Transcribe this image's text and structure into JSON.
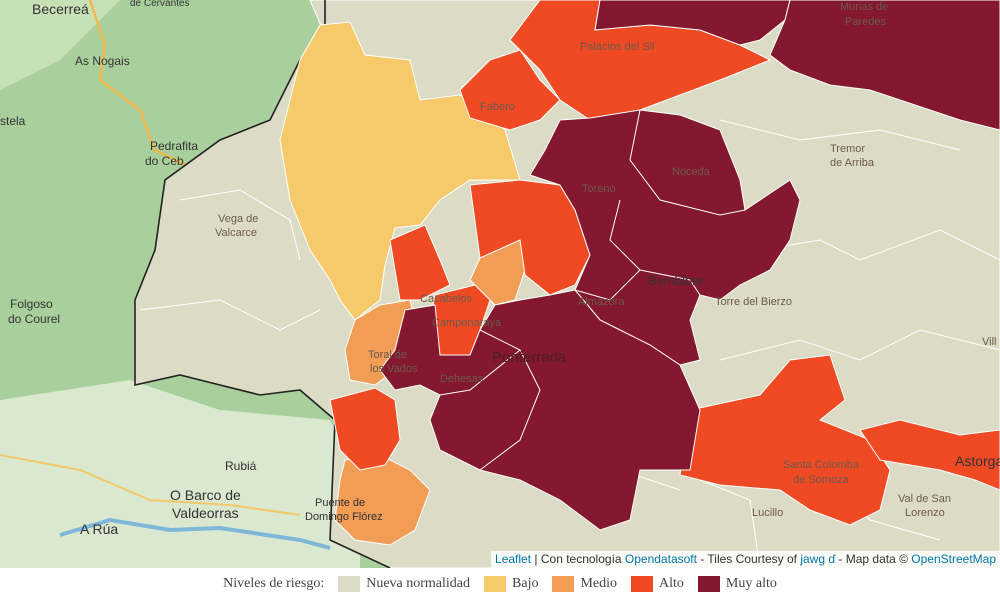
{
  "map": {
    "places": {
      "becerrea": "Becerreá",
      "cervantes": "de Cervantes",
      "as_nogais": "As Nogais",
      "stela": "stela",
      "pedrafita": "Pedrafita",
      "do_cebreiro": "do Ceb",
      "vega": "Vega de",
      "valcarce": "Valcarce",
      "folgoso": "Folgoso",
      "do_courel": "do Courel",
      "rubia": "Rubiá",
      "o_barco": "O Barco de",
      "valdeorras": "Valdeorras",
      "a_rua": "A Rúa",
      "puente": "Puente de",
      "domingo": "Domingo Flórez",
      "fabero": "Fabero",
      "palacios": "Palacios del Sil",
      "murias": "Murias de",
      "paredes": "Paredes",
      "tremor": "Tremor",
      "de_arriba": "de Arriba",
      "toreno": "Toreno",
      "noceda": "Noceda",
      "almazora": "Almazora",
      "bembibre": "Bembibre",
      "torre": "Torre del Bierzo",
      "campo": "Camponaraya",
      "ponferrada": "Ponferrada",
      "toral": "Toral de",
      "los_vados": "los Vados",
      "dehesas": "Dehesas",
      "santa_colomba": "Santa Colomba",
      "de_somoza": "de Somoza",
      "astorga": "Astorga",
      "lucillo": "Lucillo",
      "val_de_san": "Val de San",
      "lorenzo": "Lorenzo",
      "villa": "Vill",
      "cacabelos": "Cacabelos"
    },
    "attribution": {
      "leaflet": "Leaflet",
      "sep1": " | Con tecnología ",
      "opendatasoft": "Opendatasoft",
      "tiles": " - Tiles Courtesy of ",
      "jawg": "jawg",
      "mapdata": " - Map data © ",
      "osm": "OpenStreetMap"
    }
  },
  "legend": {
    "title": "Niveles de riesgo:",
    "items": [
      {
        "label": "Nueva normalidad",
        "color": "#dcdcc6"
      },
      {
        "label": "Bajo",
        "color": "#f6c96a"
      },
      {
        "label": "Medio",
        "color": "#f19d56"
      },
      {
        "label": "Alto",
        "color": "#f04a24"
      },
      {
        "label": "Muy alto",
        "color": "#84182e"
      }
    ]
  },
  "colors": {
    "nueva": "#dcdcc6",
    "bajo": "#f6c96a",
    "medio": "#f19d56",
    "alto": "#f04a24",
    "muy_alto": "#84182e",
    "terrain_green": "#a9d09c"
  }
}
